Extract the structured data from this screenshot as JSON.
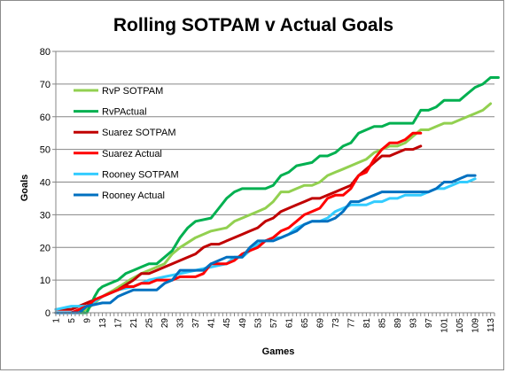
{
  "chart_data": {
    "type": "line",
    "title": "Rolling SOTPAM v Actual Goals",
    "xlabel": "Games",
    "ylabel": "Goals",
    "xlim": [
      1,
      114
    ],
    "ylim": [
      0,
      80
    ],
    "yticks": [
      0,
      10,
      20,
      30,
      40,
      50,
      60,
      70,
      80
    ],
    "xticks": [
      1,
      5,
      9,
      13,
      17,
      21,
      25,
      29,
      33,
      37,
      41,
      45,
      49,
      53,
      57,
      61,
      65,
      69,
      73,
      77,
      81,
      85,
      89,
      93,
      97,
      101,
      105,
      109,
      113
    ],
    "grid": true,
    "legend_position": "left",
    "series": [
      {
        "name": "RvP SOTPAM",
        "color": "#92d050",
        "points": [
          [
            1,
            0
          ],
          [
            5,
            0
          ],
          [
            9,
            1
          ],
          [
            11,
            3
          ],
          [
            13,
            5
          ],
          [
            16,
            7
          ],
          [
            20,
            10
          ],
          [
            23,
            12
          ],
          [
            25,
            13
          ],
          [
            29,
            15
          ],
          [
            31,
            18
          ],
          [
            33,
            20
          ],
          [
            37,
            23
          ],
          [
            41,
            25
          ],
          [
            45,
            26
          ],
          [
            47,
            28
          ],
          [
            49,
            29
          ],
          [
            53,
            31
          ],
          [
            55,
            32
          ],
          [
            57,
            34
          ],
          [
            59,
            37
          ],
          [
            61,
            37
          ],
          [
            63,
            38
          ],
          [
            65,
            39
          ],
          [
            67,
            39
          ],
          [
            69,
            40
          ],
          [
            71,
            42
          ],
          [
            73,
            43
          ],
          [
            75,
            44
          ],
          [
            77,
            45
          ],
          [
            79,
            46
          ],
          [
            81,
            47
          ],
          [
            83,
            49
          ],
          [
            85,
            50
          ],
          [
            87,
            51
          ],
          [
            89,
            51
          ],
          [
            91,
            52
          ],
          [
            93,
            54
          ],
          [
            95,
            56
          ],
          [
            97,
            56
          ],
          [
            99,
            57
          ],
          [
            101,
            58
          ],
          [
            103,
            58
          ],
          [
            105,
            59
          ],
          [
            107,
            60
          ],
          [
            109,
            61
          ],
          [
            111,
            62
          ],
          [
            113,
            64
          ]
        ]
      },
      {
        "name": "RvPActual",
        "color": "#00b050",
        "points": [
          [
            1,
            0
          ],
          [
            9,
            0
          ],
          [
            11,
            5
          ],
          [
            12,
            7
          ],
          [
            13,
            8
          ],
          [
            15,
            9
          ],
          [
            17,
            10
          ],
          [
            19,
            12
          ],
          [
            21,
            13
          ],
          [
            23,
            14
          ],
          [
            25,
            15
          ],
          [
            27,
            15
          ],
          [
            29,
            17
          ],
          [
            31,
            19
          ],
          [
            33,
            23
          ],
          [
            35,
            26
          ],
          [
            37,
            28
          ],
          [
            41,
            29
          ],
          [
            43,
            32
          ],
          [
            45,
            35
          ],
          [
            47,
            37
          ],
          [
            49,
            38
          ],
          [
            55,
            38
          ],
          [
            57,
            39
          ],
          [
            59,
            42
          ],
          [
            61,
            43
          ],
          [
            63,
            45
          ],
          [
            67,
            46
          ],
          [
            69,
            48
          ],
          [
            71,
            48
          ],
          [
            73,
            49
          ],
          [
            75,
            51
          ],
          [
            77,
            52
          ],
          [
            79,
            55
          ],
          [
            81,
            56
          ],
          [
            83,
            57
          ],
          [
            85,
            57
          ],
          [
            87,
            58
          ],
          [
            93,
            58
          ],
          [
            95,
            62
          ],
          [
            97,
            62
          ],
          [
            99,
            63
          ],
          [
            101,
            65
          ],
          [
            105,
            65
          ],
          [
            107,
            67
          ],
          [
            109,
            69
          ],
          [
            111,
            70
          ],
          [
            113,
            72
          ],
          [
            115,
            72
          ]
        ]
      },
      {
        "name": "Suarez SOTPAM",
        "color": "#c00000",
        "points": [
          [
            1,
            1
          ],
          [
            3,
            1
          ],
          [
            5,
            1
          ],
          [
            9,
            3
          ],
          [
            13,
            5
          ],
          [
            17,
            7
          ],
          [
            21,
            10
          ],
          [
            23,
            12
          ],
          [
            25,
            12
          ],
          [
            27,
            13
          ],
          [
            29,
            14
          ],
          [
            31,
            15
          ],
          [
            33,
            16
          ],
          [
            37,
            18
          ],
          [
            39,
            20
          ],
          [
            41,
            21
          ],
          [
            43,
            21
          ],
          [
            45,
            22
          ],
          [
            49,
            24
          ],
          [
            51,
            25
          ],
          [
            53,
            26
          ],
          [
            55,
            28
          ],
          [
            57,
            29
          ],
          [
            59,
            31
          ],
          [
            61,
            32
          ],
          [
            63,
            33
          ],
          [
            65,
            34
          ],
          [
            67,
            35
          ],
          [
            69,
            35
          ],
          [
            71,
            36
          ],
          [
            73,
            37
          ],
          [
            75,
            38
          ],
          [
            77,
            39
          ],
          [
            79,
            42
          ],
          [
            81,
            44
          ],
          [
            83,
            46
          ],
          [
            85,
            48
          ],
          [
            87,
            48
          ],
          [
            89,
            49
          ],
          [
            91,
            50
          ],
          [
            93,
            50
          ],
          [
            95,
            51
          ]
        ]
      },
      {
        "name": "Suarez Actual",
        "color": "#ff0000",
        "points": [
          [
            1,
            0
          ],
          [
            5,
            0
          ],
          [
            7,
            1
          ],
          [
            9,
            2
          ],
          [
            11,
            4
          ],
          [
            13,
            5
          ],
          [
            15,
            6
          ],
          [
            17,
            7
          ],
          [
            19,
            8
          ],
          [
            21,
            8
          ],
          [
            23,
            9
          ],
          [
            25,
            9
          ],
          [
            27,
            10
          ],
          [
            29,
            10
          ],
          [
            31,
            10
          ],
          [
            33,
            11
          ],
          [
            35,
            11
          ],
          [
            37,
            11
          ],
          [
            39,
            12
          ],
          [
            41,
            15
          ],
          [
            43,
            15
          ],
          [
            45,
            15
          ],
          [
            47,
            16
          ],
          [
            49,
            18
          ],
          [
            51,
            19
          ],
          [
            53,
            20
          ],
          [
            55,
            22
          ],
          [
            57,
            23
          ],
          [
            59,
            25
          ],
          [
            61,
            26
          ],
          [
            63,
            28
          ],
          [
            65,
            30
          ],
          [
            67,
            31
          ],
          [
            69,
            32
          ],
          [
            71,
            35
          ],
          [
            73,
            36
          ],
          [
            75,
            36
          ],
          [
            77,
            38
          ],
          [
            79,
            42
          ],
          [
            81,
            43
          ],
          [
            83,
            47
          ],
          [
            85,
            50
          ],
          [
            87,
            52
          ],
          [
            89,
            52
          ],
          [
            91,
            53
          ],
          [
            93,
            55
          ],
          [
            95,
            55
          ]
        ]
      },
      {
        "name": "Rooney SOTPAM",
        "color": "#33ccff",
        "points": [
          [
            1,
            1
          ],
          [
            5,
            2
          ],
          [
            9,
            2
          ],
          [
            13,
            5
          ],
          [
            17,
            7
          ],
          [
            21,
            8
          ],
          [
            25,
            10
          ],
          [
            29,
            11
          ],
          [
            33,
            12
          ],
          [
            37,
            13
          ],
          [
            41,
            14
          ],
          [
            45,
            15
          ],
          [
            47,
            17
          ],
          [
            49,
            17
          ],
          [
            51,
            19
          ],
          [
            53,
            21
          ],
          [
            55,
            22
          ],
          [
            57,
            23
          ],
          [
            59,
            23
          ],
          [
            61,
            24
          ],
          [
            63,
            26
          ],
          [
            65,
            27
          ],
          [
            67,
            28
          ],
          [
            69,
            28
          ],
          [
            71,
            29
          ],
          [
            73,
            31
          ],
          [
            75,
            32
          ],
          [
            77,
            33
          ],
          [
            79,
            33
          ],
          [
            81,
            33
          ],
          [
            83,
            34
          ],
          [
            85,
            34
          ],
          [
            87,
            35
          ],
          [
            89,
            35
          ],
          [
            91,
            36
          ],
          [
            93,
            36
          ],
          [
            95,
            36
          ],
          [
            97,
            37
          ],
          [
            99,
            38
          ],
          [
            101,
            38
          ],
          [
            103,
            39
          ],
          [
            105,
            40
          ],
          [
            107,
            40
          ],
          [
            109,
            41
          ]
        ]
      },
      {
        "name": "Rooney Actual",
        "color": "#0070c0",
        "points": [
          [
            1,
            0
          ],
          [
            7,
            0
          ],
          [
            9,
            2
          ],
          [
            13,
            3
          ],
          [
            15,
            3
          ],
          [
            17,
            5
          ],
          [
            19,
            6
          ],
          [
            21,
            7
          ],
          [
            27,
            7
          ],
          [
            29,
            9
          ],
          [
            31,
            10
          ],
          [
            33,
            13
          ],
          [
            39,
            13
          ],
          [
            41,
            15
          ],
          [
            43,
            16
          ],
          [
            45,
            17
          ],
          [
            47,
            17
          ],
          [
            49,
            17
          ],
          [
            51,
            20
          ],
          [
            53,
            22
          ],
          [
            57,
            22
          ],
          [
            59,
            23
          ],
          [
            61,
            24
          ],
          [
            63,
            25
          ],
          [
            65,
            27
          ],
          [
            67,
            28
          ],
          [
            69,
            28
          ],
          [
            71,
            28
          ],
          [
            73,
            29
          ],
          [
            75,
            31
          ],
          [
            77,
            34
          ],
          [
            79,
            34
          ],
          [
            81,
            35
          ],
          [
            83,
            36
          ],
          [
            85,
            37
          ],
          [
            87,
            37
          ],
          [
            97,
            37
          ],
          [
            99,
            38
          ],
          [
            101,
            40
          ],
          [
            103,
            40
          ],
          [
            105,
            41
          ],
          [
            107,
            42
          ],
          [
            109,
            42
          ]
        ]
      }
    ]
  }
}
